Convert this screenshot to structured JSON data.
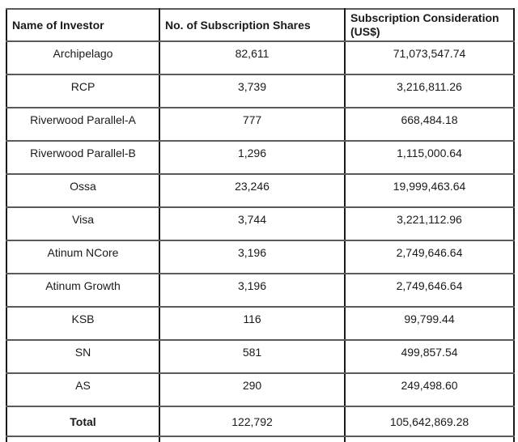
{
  "document": {
    "background_color": "#ffffff",
    "text_color": "#1a1a1a",
    "border_vertical_color": "#1a1a1a",
    "border_horizontal_color": "#5a5a5a"
  },
  "table": {
    "columns": [
      {
        "key": "name",
        "label": "Name of Investor"
      },
      {
        "key": "shares",
        "label": "No. of Subscription Shares"
      },
      {
        "key": "consideration",
        "label": "Subscription Consideration (US$)"
      }
    ],
    "rows": [
      {
        "name": "Archipelago",
        "shares": "82,611",
        "consideration": "71,073,547.74"
      },
      {
        "name": "RCP",
        "shares": "3,739",
        "consideration": "3,216,811.26"
      },
      {
        "name": "Riverwood Parallel-A",
        "shares": "777",
        "consideration": "668,484.18"
      },
      {
        "name": "Riverwood Parallel-B",
        "shares": "1,296",
        "consideration": "1,115,000.64"
      },
      {
        "name": "Ossa",
        "shares": "23,246",
        "consideration": "19,999,463.64"
      },
      {
        "name": "Visa",
        "shares": "3,744",
        "consideration": "3,221,112.96"
      },
      {
        "name": "Atinum NCore",
        "shares": "3,196",
        "consideration": "2,749,646.64"
      },
      {
        "name": "Atinum Growth",
        "shares": "3,196",
        "consideration": "2,749,646.64"
      },
      {
        "name": "KSB",
        "shares": "116",
        "consideration": "99,799.44"
      },
      {
        "name": "SN",
        "shares": "581",
        "consideration": "499,857.54"
      },
      {
        "name": "AS",
        "shares": "290",
        "consideration": "249,498.60"
      }
    ],
    "total_row": {
      "name": "Total",
      "shares": "122,792",
      "consideration": "105,642,869.28"
    }
  }
}
